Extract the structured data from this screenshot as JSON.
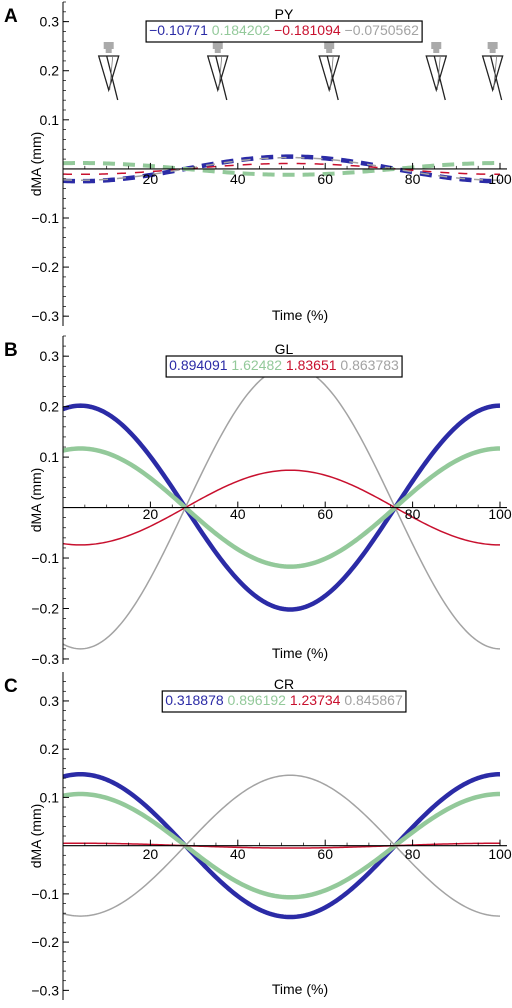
{
  "figure": {
    "colors": {
      "blue": "#2b2ba6",
      "green": "#93c99a",
      "red": "#c8102e",
      "gray": "#a3a3a3",
      "axis": "#000000"
    }
  },
  "chart_data": [
    {
      "panel_label": "A",
      "type": "line",
      "title": "PY",
      "xlabel": "Time (%)",
      "ylabel": "dMA (mm)",
      "xlim": [
        0,
        100
      ],
      "ylim": [
        -0.32,
        0.34
      ],
      "x_ticks": [
        "20",
        "40",
        "60",
        "80",
        "100"
      ],
      "y_ticks": [
        "0.3",
        "0.2",
        "0.1",
        "−0.1",
        "−0.2",
        "−0.3"
      ],
      "legend": [
        "−0.10771",
        "0.184202",
        "−0.181094",
        "−0.0750562"
      ],
      "line_style": "dashed",
      "icons": "pencil-shaped posture markers",
      "zero_times": [
        28,
        76
      ],
      "series": [
        {
          "color_key": "blue",
          "width": 4.5,
          "amplitude": -0.025
        },
        {
          "color_key": "green",
          "width": 4.0,
          "amplitude": 0.012
        },
        {
          "color_key": "red",
          "width": 1.5,
          "amplitude": -0.011
        },
        {
          "color_key": "gray",
          "width": 1.5,
          "amplitude": -0.023
        }
      ]
    },
    {
      "panel_label": "B",
      "type": "line",
      "title": "GL",
      "xlabel": "Time (%)",
      "ylabel": "dMA (mm)",
      "xlim": [
        0,
        100
      ],
      "ylim": [
        -0.31,
        0.34
      ],
      "x_ticks": [
        "20",
        "40",
        "60",
        "80",
        "100"
      ],
      "y_ticks": [
        "0.3",
        "0.2",
        "0.1",
        "−0.1",
        "−0.2",
        "−0.3"
      ],
      "legend": [
        "0.894091",
        "1.62482",
        "1.83651",
        "0.863783"
      ],
      "line_style": "solid",
      "zero_times": [
        28,
        76
      ],
      "series": [
        {
          "color_key": "blue",
          "width": 4.5,
          "amplitude": 0.202
        },
        {
          "color_key": "green",
          "width": 4.5,
          "amplitude": 0.117
        },
        {
          "color_key": "red",
          "width": 1.5,
          "amplitude": -0.074
        },
        {
          "color_key": "gray",
          "width": 1.5,
          "amplitude": -0.28
        }
      ]
    },
    {
      "panel_label": "C",
      "type": "line",
      "title": "CR",
      "xlabel": "Time (%)",
      "ylabel": "dMA (mm)",
      "xlim": [
        0,
        100
      ],
      "ylim": [
        -0.32,
        0.36
      ],
      "x_ticks": [
        "20",
        "40",
        "60",
        "80",
        "100"
      ],
      "y_ticks": [
        "0.3",
        "0.2",
        "0.1",
        "−0.1",
        "−0.2",
        "−0.3"
      ],
      "legend": [
        "0.318878",
        "0.896192",
        "1.23734",
        "0.845867"
      ],
      "line_style": "solid",
      "zero_times": [
        28,
        76
      ],
      "series": [
        {
          "color_key": "blue",
          "width": 4.5,
          "amplitude": 0.148
        },
        {
          "color_key": "green",
          "width": 4.5,
          "amplitude": 0.107
        },
        {
          "color_key": "red",
          "width": 1.5,
          "amplitude": 0.005
        },
        {
          "color_key": "gray",
          "width": 1.5,
          "amplitude": -0.146
        }
      ]
    }
  ]
}
